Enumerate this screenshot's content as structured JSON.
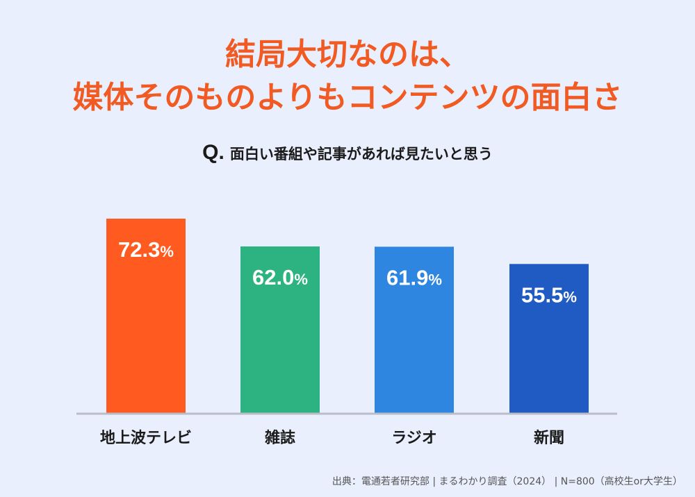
{
  "title": {
    "line1": "結局大切なのは、",
    "line2": "媒体そのものよりもコンテンツの面白さ"
  },
  "question": {
    "mark": "Q.",
    "text": "面白い番組や記事があれば見たいと思う"
  },
  "source": "出典：電通若者研究部 | まるわかり調査（2024） | N=800（高校生or大学生）",
  "chart_data": {
    "type": "bar",
    "title": "面白い番組や記事があれば見たいと思う",
    "categories": [
      "地上波テレビ",
      "雑誌",
      "ラジオ",
      "新聞"
    ],
    "values": [
      72.3,
      62.0,
      61.9,
      55.5
    ],
    "value_labels": [
      "72.3",
      "62.0",
      "61.9",
      "55.5"
    ],
    "unit": "%",
    "colors": [
      "#ff5a1f",
      "#2db382",
      "#2f86e0",
      "#1f5bc2"
    ],
    "ylim": [
      0,
      100
    ],
    "xlabel": "",
    "ylabel": ""
  }
}
